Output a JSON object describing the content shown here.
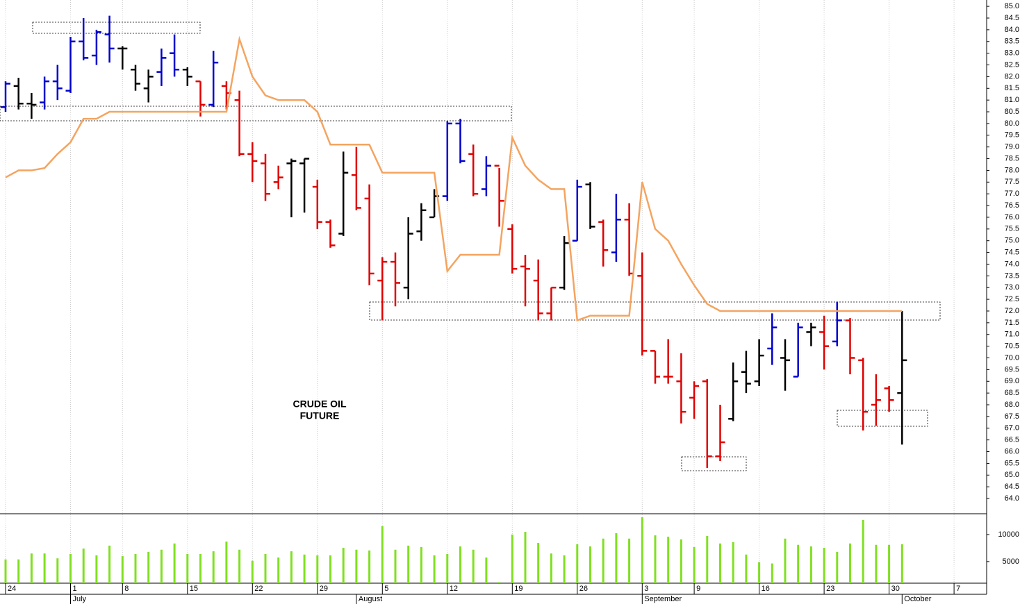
{
  "chart_data": [
    {
      "type": "ohlc",
      "annotation": [
        "CRUDE OIL",
        "FUTURE"
      ],
      "categories": [
        "24",
        null,
        null,
        null,
        null,
        "1",
        null,
        null,
        null,
        "8",
        null,
        null,
        null,
        null,
        "15",
        null,
        null,
        null,
        null,
        "22",
        null,
        null,
        null,
        null,
        "29",
        null,
        null,
        null,
        null,
        "5",
        null,
        null,
        null,
        null,
        "12",
        null,
        null,
        null,
        null,
        "19",
        null,
        null,
        null,
        null,
        "26",
        null,
        null,
        null,
        null,
        "3",
        null,
        null,
        null,
        "9",
        null,
        null,
        null,
        null,
        "16",
        null,
        null,
        null,
        null,
        "23",
        null,
        null,
        null,
        null,
        "30",
        null,
        null,
        null,
        null,
        "7"
      ],
      "months": [
        null,
        null,
        null,
        null,
        null,
        "July",
        null,
        null,
        null,
        null,
        null,
        null,
        null,
        null,
        null,
        null,
        null,
        null,
        null,
        null,
        null,
        null,
        null,
        null,
        null,
        null,
        null,
        "August",
        null,
        null,
        null,
        null,
        null,
        null,
        null,
        null,
        null,
        null,
        null,
        null,
        null,
        null,
        null,
        null,
        null,
        null,
        null,
        null,
        null,
        "September",
        null,
        null,
        null,
        null,
        null,
        null,
        null,
        null,
        null,
        null,
        null,
        null,
        null,
        null,
        null,
        null,
        null,
        null,
        null,
        "October",
        null,
        null,
        null,
        null
      ],
      "ylim": [
        63.35,
        85.27
      ],
      "yticks": [
        {
          "value": 64,
          "label": "64.0"
        },
        64.5,
        {
          "value": 65,
          "label": "65.0"
        },
        65.5,
        {
          "value": 66,
          "label": "66.0"
        },
        66.5,
        {
          "value": 67,
          "label": "67.0"
        },
        67.5,
        {
          "value": 68,
          "label": "68.0"
        },
        68.5,
        {
          "value": 69,
          "label": "69.0"
        },
        69.5,
        {
          "value": 70,
          "label": "70.0"
        },
        70.5,
        {
          "value": 71,
          "label": "71.0"
        },
        71.5,
        {
          "value": 72,
          "label": "72.0"
        },
        72.5,
        {
          "value": 73,
          "label": "73.0"
        },
        73.5,
        {
          "value": 74,
          "label": "74.0"
        },
        74.5,
        {
          "value": 75,
          "label": "75.0"
        },
        75.5,
        {
          "value": 76,
          "label": "76.0"
        },
        76.5,
        {
          "value": 77,
          "label": "77.0"
        },
        77.5,
        {
          "value": 78,
          "label": "78.0"
        },
        78.5,
        {
          "value": 79,
          "label": "79.0"
        },
        79.5,
        {
          "value": 80,
          "label": "80.0"
        },
        80.5,
        {
          "value": 81,
          "label": "81.0"
        },
        81.5,
        {
          "value": 82,
          "label": "82.0"
        },
        82.5,
        {
          "value": 83,
          "label": "83.0"
        },
        83.5,
        {
          "value": 84,
          "label": "84.0"
        },
        84.5,
        {
          "value": 85,
          "label": "85.0"
        }
      ],
      "grid": true,
      "series": [
        {
          "type": "ohlc",
          "values": [
            [
              80.7,
              81.8,
              80.5,
              81.7
            ],
            [
              81.6,
              81.95,
              80.6,
              80.85
            ],
            [
              80.85,
              81.3,
              80.2,
              80.8
            ],
            [
              80.9,
              82.0,
              80.6,
              81.8
            ],
            [
              81.8,
              82.5,
              81.0,
              81.5
            ],
            [
              81.4,
              83.7,
              81.3,
              83.5
            ],
            [
              83.5,
              84.5,
              82.7,
              82.8
            ],
            [
              82.9,
              84.0,
              82.5,
              83.9
            ],
            [
              83.8,
              84.6,
              82.6,
              83.2
            ],
            [
              83.2,
              83.3,
              82.3,
              83.2
            ],
            [
              82.3,
              82.5,
              81.4,
              81.7
            ],
            [
              81.5,
              82.3,
              80.9,
              82.0
            ],
            [
              82.2,
              83.2,
              81.6,
              82.8
            ],
            [
              83.0,
              83.8,
              82.0,
              82.3
            ],
            [
              82.3,
              82.4,
              81.6,
              82.0
            ],
            [
              81.8,
              81.8,
              80.3,
              80.8
            ],
            [
              80.8,
              83.1,
              80.7,
              82.6
            ],
            [
              81.6,
              81.8,
              80.6,
              81.3
            ],
            [
              81.0,
              81.4,
              78.6,
              78.7
            ],
            [
              78.7,
              79.2,
              77.5,
              78.4
            ],
            [
              78.3,
              78.7,
              76.7,
              77.0
            ],
            [
              77.5,
              78.2,
              77.2,
              77.7
            ],
            [
              78.3,
              78.5,
              76.0,
              78.4
            ],
            [
              78.3,
              78.5,
              76.2,
              78.5
            ],
            [
              77.3,
              77.6,
              75.5,
              75.8
            ],
            [
              75.8,
              75.9,
              74.7,
              74.8
            ],
            [
              75.3,
              78.8,
              75.2,
              77.9
            ],
            [
              77.8,
              79.0,
              76.3,
              76.4
            ],
            [
              76.8,
              77.4,
              73.1,
              73.6
            ],
            [
              73.3,
              74.3,
              71.6,
              74.1
            ],
            [
              74.1,
              74.5,
              72.2,
              73.2
            ],
            [
              73.0,
              76.0,
              72.5,
              75.3
            ],
            [
              75.4,
              76.6,
              75.0,
              76.3
            ],
            [
              76.0,
              77.2,
              76.0,
              76.9
            ],
            [
              76.9,
              80.1,
              76.7,
              80.0
            ],
            [
              80.0,
              80.2,
              78.3,
              78.4
            ],
            [
              78.7,
              79.1,
              76.9,
              77.0
            ],
            [
              77.2,
              78.6,
              76.9,
              78.2
            ],
            [
              78.2,
              78.1,
              75.6,
              76.7
            ],
            [
              75.5,
              75.7,
              73.6,
              73.8
            ],
            [
              73.9,
              74.4,
              72.2,
              73.8
            ],
            [
              73.3,
              74.2,
              71.6,
              71.9
            ],
            [
              71.9,
              73.0,
              71.6,
              73.0
            ],
            [
              73.0,
              75.2,
              72.9,
              74.9
            ],
            [
              75.0,
              77.6,
              75.0,
              77.3
            ],
            [
              77.4,
              77.5,
              75.5,
              75.6
            ],
            [
              75.8,
              75.9,
              73.9,
              74.6
            ],
            [
              74.5,
              77.0,
              74.1,
              75.9
            ],
            [
              75.9,
              76.6,
              73.5,
              73.6
            ],
            [
              73.5,
              74.5,
              70.1,
              70.3
            ],
            [
              70.3,
              70.3,
              68.9,
              69.2
            ],
            [
              69.2,
              70.8,
              68.9,
              69.2
            ],
            [
              69.0,
              70.2,
              67.2,
              67.7
            ],
            [
              68.3,
              69.0,
              67.4,
              68.8
            ],
            [
              69.0,
              69.1,
              65.3,
              65.8
            ],
            [
              65.8,
              68.0,
              65.6,
              66.4
            ],
            [
              67.4,
              69.8,
              67.3,
              69.0
            ],
            [
              69.4,
              70.3,
              68.5,
              68.9
            ],
            [
              69.0,
              70.8,
              68.8,
              70.1
            ],
            [
              70.4,
              71.9,
              69.7,
              71.3
            ],
            [
              70.0,
              70.8,
              68.6,
              69.9
            ],
            [
              69.2,
              71.5,
              69.2,
              71.3
            ],
            [
              71.1,
              71.5,
              70.5,
              71.3
            ],
            [
              71.1,
              71.8,
              69.5,
              70.5
            ],
            [
              70.7,
              72.4,
              70.5,
              71.6
            ],
            [
              71.6,
              71.7,
              69.3,
              70.0
            ],
            [
              69.9,
              70.0,
              66.9,
              67.7
            ],
            [
              68.0,
              69.3,
              67.1,
              68.2
            ],
            [
              68.7,
              68.8,
              67.7,
              68.2
            ],
            [
              68.5,
              72.0,
              66.3,
              69.9
            ],
            null,
            null,
            null,
            null
          ],
          "colors": [
            "#0000cc",
            "#000000",
            "#000000",
            "#0000cc",
            "#0000cc",
            "#0000cc",
            "#0000cc",
            "#0000cc",
            "#0000cc",
            "#000000",
            "#000000",
            "#000000",
            "#0000cc",
            "#0000cc",
            "#000000",
            "#e00000",
            "#0000cc",
            "#e00000",
            "#e00000",
            "#e00000",
            "#e00000",
            "#e00000",
            "#000000",
            "#000000",
            "#e00000",
            "#e00000",
            "#000000",
            "#e00000",
            "#e00000",
            "#e00000",
            "#e00000",
            "#000000",
            "#000000",
            "#000000",
            "#0000cc",
            "#0000cc",
            "#e00000",
            "#0000cc",
            "#e00000",
            "#e00000",
            "#e00000",
            "#e00000",
            "#e00000",
            "#000000",
            "#0000cc",
            "#000000",
            "#e00000",
            "#0000cc",
            "#e00000",
            "#e00000",
            "#e00000",
            "#e00000",
            "#e00000",
            "#e00000",
            "#e00000",
            "#e00000",
            "#000000",
            "#000000",
            "#000000",
            "#0000cc",
            "#000000",
            "#0000cc",
            "#000000",
            "#e00000",
            "#0000cc",
            "#e00000",
            "#e00000",
            "#e00000",
            "#e00000",
            "#000000",
            null,
            null,
            null,
            null
          ]
        },
        {
          "type": "line",
          "color": "#f4a460",
          "values": [
            77.7,
            78.0,
            78.0,
            78.1,
            78.7,
            79.2,
            80.2,
            80.2,
            80.5,
            80.5,
            80.5,
            80.5,
            80.5,
            80.5,
            80.5,
            80.5,
            80.5,
            80.5,
            83.6,
            82.0,
            81.2,
            81.0,
            81.0,
            81.0,
            80.5,
            79.1,
            79.1,
            79.1,
            79.1,
            77.9,
            77.9,
            77.9,
            77.9,
            77.9,
            73.7,
            74.4,
            74.4,
            74.4,
            74.4,
            79.4,
            78.2,
            77.6,
            77.2,
            77.2,
            71.6,
            71.8,
            71.8,
            71.8,
            71.8,
            77.5,
            75.5,
            75.0,
            74.0,
            73.1,
            72.3,
            72.0,
            72.0,
            72.0,
            72.0,
            72.0,
            72.0,
            72.0,
            72.0,
            72.0,
            72.0,
            72.0,
            72.0,
            72.0,
            72.0,
            72.0,
            null,
            null,
            null,
            null
          ]
        }
      ]
    },
    {
      "type": "bar",
      "color": "#80e020",
      "ylim": [
        1000,
        13850
      ],
      "yticks": [
        5000,
        10000
      ],
      "values": [
        5400,
        5400,
        6500,
        6500,
        5600,
        6400,
        7400,
        6150,
        7950,
        6000,
        6400,
        6800,
        7200,
        8350,
        6400,
        6400,
        6900,
        8700,
        7200,
        5150,
        6400,
        5750,
        6900,
        6300,
        6150,
        6150,
        7550,
        7200,
        7050,
        11550,
        7200,
        7950,
        7700,
        6150,
        6400,
        7800,
        7200,
        5750,
        1200,
        10000,
        10500,
        8450,
        6500,
        6150,
        8200,
        7800,
        9250,
        10250,
        9250,
        13200,
        9850,
        9600,
        9100,
        7700,
        9750,
        8350,
        8600,
        6300,
        4900,
        4650,
        9250,
        8100,
        7800,
        7550,
        6800,
        8350,
        12700,
        8100,
        8100,
        8200,
        null,
        null,
        null,
        null
      ]
    }
  ]
}
